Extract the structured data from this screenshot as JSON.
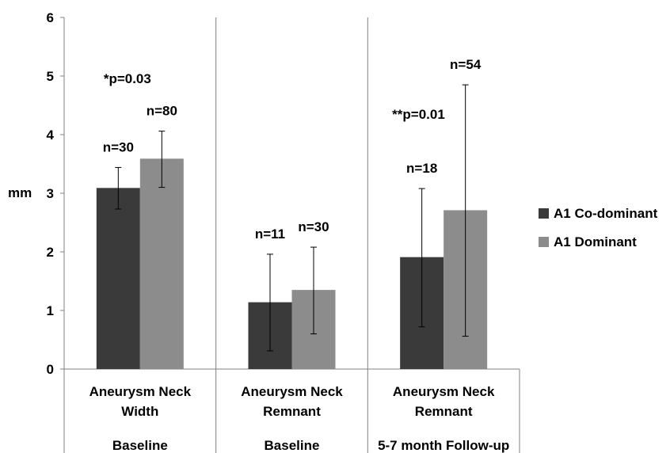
{
  "chart_data": {
    "type": "bar",
    "ylabel": "mm",
    "ylim": [
      0,
      6
    ],
    "yticks": [
      "0",
      "1",
      "2",
      "3",
      "4",
      "5",
      "6"
    ],
    "categories": [
      {
        "label_lines": [
          "Aneurysm Neck",
          "Width"
        ],
        "group": "Baseline"
      },
      {
        "label_lines": [
          "Aneurysm Neck",
          "Remnant"
        ],
        "group": "Baseline"
      },
      {
        "label_lines": [
          "Aneurysm Neck",
          "Remnant"
        ],
        "group": "5-7 month Follow-up"
      }
    ],
    "series": [
      {
        "name": "A1 Co-dominant",
        "color": "#3a3a3a",
        "values": [
          3.09,
          1.14,
          1.91
        ],
        "err_low": [
          2.73,
          0.31,
          0.72
        ],
        "err_high": [
          3.44,
          1.96,
          3.08
        ],
        "n_labels": [
          "n=30",
          "n=11",
          "n=18"
        ]
      },
      {
        "name": "A1 Dominant",
        "color": "#8c8c8c",
        "values": [
          3.59,
          1.35,
          2.71
        ],
        "err_low": [
          3.1,
          0.6,
          0.56
        ],
        "err_high": [
          4.06,
          2.08,
          4.85
        ],
        "n_labels": [
          "n=80",
          "n=30",
          "n=54"
        ]
      }
    ],
    "annotations": [
      "*p=0.03",
      "",
      "**p=0.01"
    ],
    "legend_position": "right",
    "grid": false
  }
}
